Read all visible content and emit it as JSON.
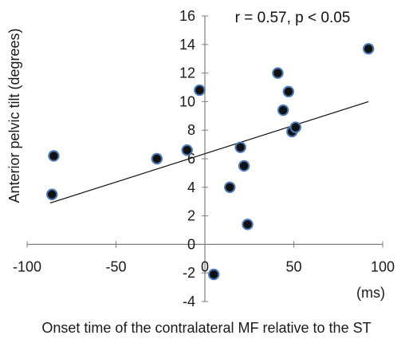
{
  "chart_data": {
    "type": "scatter",
    "title": "",
    "annotation": "r = 0.57, p < 0.05",
    "xlabel": "Onset time of the contralateral MF relative to the ST",
    "ylabel": "Anterior pelvic tilt (degrees)",
    "x_unit_label": "(ms)",
    "xlim": [
      -100,
      100
    ],
    "ylim": [
      -4,
      16
    ],
    "x_ticks": [
      -100,
      -50,
      0,
      50,
      100
    ],
    "y_ticks": [
      -4,
      -2,
      0,
      2,
      4,
      6,
      8,
      10,
      12,
      14,
      16
    ],
    "x_tick_labels": [
      "-100",
      "-50",
      "0",
      "50",
      "100"
    ],
    "y_tick_labels": [
      "-4",
      "-2",
      "0",
      "2",
      "4",
      "6",
      "8",
      "10",
      "12",
      "14",
      "16"
    ],
    "grid": false,
    "legend": "none",
    "points": [
      {
        "x": -85,
        "y": 6.2
      },
      {
        "x": -86,
        "y": 3.5
      },
      {
        "x": -27,
        "y": 6.0
      },
      {
        "x": -10,
        "y": 6.6
      },
      {
        "x": -3,
        "y": 10.8
      },
      {
        "x": 5,
        "y": -2.1
      },
      {
        "x": 14,
        "y": 4.0
      },
      {
        "x": 20,
        "y": 6.8
      },
      {
        "x": 22,
        "y": 5.5
      },
      {
        "x": 24,
        "y": 1.4
      },
      {
        "x": 41,
        "y": 12.0
      },
      {
        "x": 44,
        "y": 9.4
      },
      {
        "x": 47,
        "y": 10.7
      },
      {
        "x": 49,
        "y": 7.9
      },
      {
        "x": 51,
        "y": 8.2
      },
      {
        "x": 92,
        "y": 13.7
      }
    ],
    "trendline": {
      "x": [
        -87,
        92
      ],
      "y": [
        2.9,
        10.0
      ]
    },
    "colors": {
      "point_fill": "#111111",
      "point_edge": "#4a7ab8",
      "axis": "#7f7f7f",
      "text": "#1a1a1a"
    }
  }
}
